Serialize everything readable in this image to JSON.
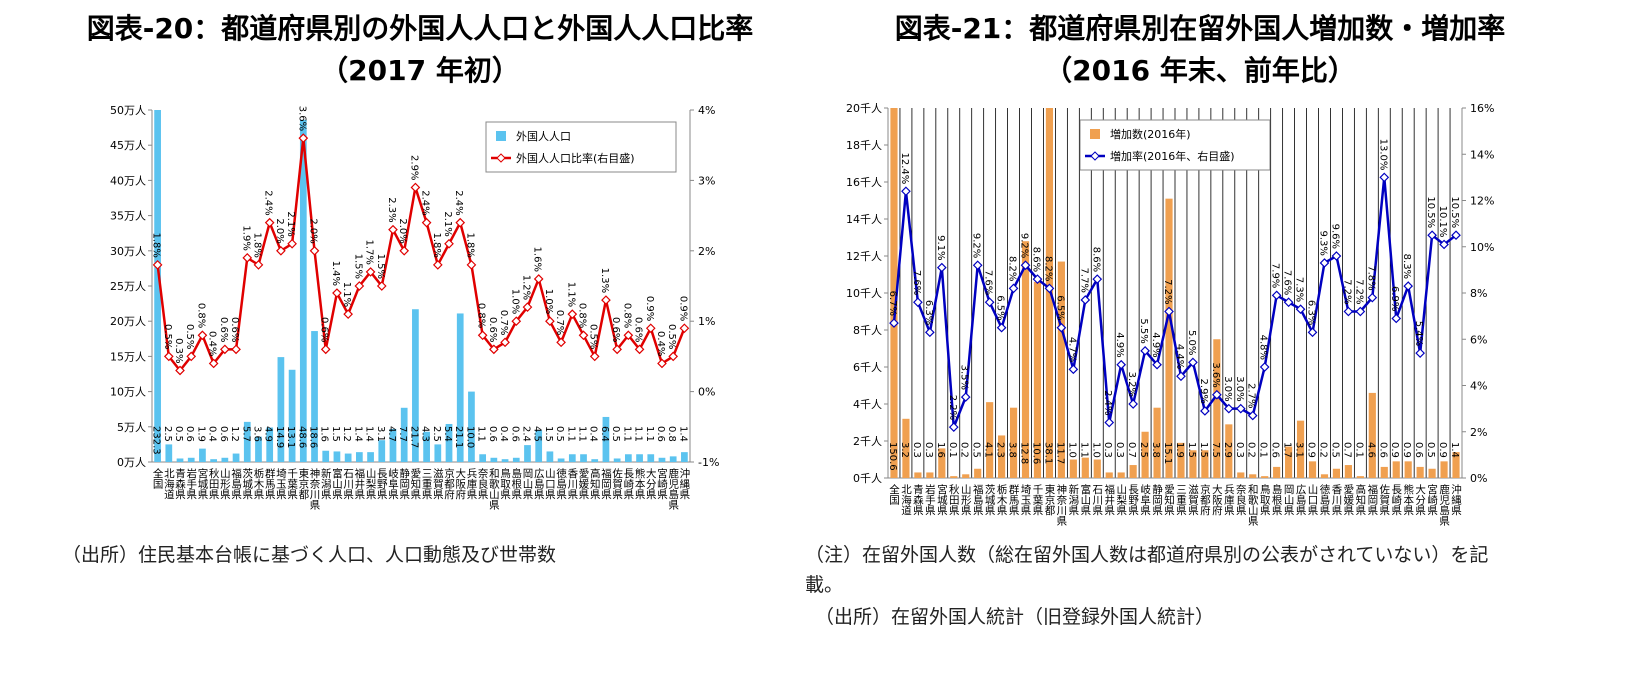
{
  "chart_data": [
    {
      "type": "combo",
      "title": "図表-20：都道府県別の外国人人口と外国人人口比率（2017 年初）",
      "notes": [
        "（出所）住民基本台帳に基づく人口、人口動態及び世帯数"
      ],
      "legend": "top-right",
      "categories": [
        "全国",
        "北海道",
        "青森県",
        "岩手県",
        "宮城県",
        "秋田県",
        "山形県",
        "福島県",
        "茨城県",
        "栃木県",
        "群馬県",
        "埼玉県",
        "千葉県",
        "東京都",
        "神奈川県",
        "新潟県",
        "富山県",
        "石川県",
        "福井県",
        "山梨県",
        "長野県",
        "岐阜県",
        "静岡県",
        "愛知県",
        "三重県",
        "滋賀県",
        "京都府",
        "大阪府",
        "兵庫県",
        "奈良県",
        "和歌山県",
        "鳥取県",
        "島根県",
        "岡山県",
        "広島県",
        "山口県",
        "徳島県",
        "香川県",
        "愛媛県",
        "高知県",
        "福岡県",
        "佐賀県",
        "長崎県",
        "熊本県",
        "大分県",
        "宮崎県",
        "鹿児島県",
        "沖縄県"
      ],
      "ylim": [
        0,
        50
      ],
      "yticks": [
        {
          "value": 0,
          "label": "0万人"
        },
        {
          "value": 5,
          "label": "5万人"
        },
        {
          "value": 10,
          "label": "10万人"
        },
        {
          "value": 15,
          "label": "15万人"
        },
        {
          "value": 20,
          "label": "20万人"
        },
        {
          "value": 25,
          "label": "25万人"
        },
        {
          "value": 30,
          "label": "30万人"
        },
        {
          "value": 35,
          "label": "35万人"
        },
        {
          "value": 40,
          "label": "40万人"
        },
        {
          "value": 45,
          "label": "45万人"
        },
        {
          "value": 50,
          "label": "50万人"
        }
      ],
      "y2lim": [
        -1,
        4
      ],
      "y2ticks": [
        {
          "value": -1,
          "label": "-1%"
        },
        {
          "value": 0,
          "label": "0%"
        },
        {
          "value": 1,
          "label": "1%"
        },
        {
          "value": 2,
          "label": "2%"
        },
        {
          "value": 3,
          "label": "3%"
        },
        {
          "value": 4,
          "label": "4%"
        }
      ],
      "series": [
        {
          "name": "外国人人口",
          "type": "bar",
          "color": "#5bc3ef",
          "values": [
            232.3,
            2.5,
            0.5,
            0.6,
            1.9,
            0.4,
            0.6,
            1.2,
            5.7,
            3.6,
            4.9,
            14.9,
            13.1,
            48.6,
            18.6,
            1.6,
            1.5,
            1.2,
            1.4,
            1.4,
            3.1,
            4.7,
            7.7,
            21.7,
            4.3,
            2.5,
            5.4,
            21.1,
            10.0,
            1.1,
            0.6,
            0.4,
            0.6,
            2.4,
            4.5,
            1.5,
            0.5,
            1.1,
            1.1,
            0.4,
            6.4,
            0.5,
            1.1,
            1.1,
            1.1,
            0.6,
            0.8,
            1.4
          ],
          "value_labels": [
            "232.3",
            "2.5",
            "0.5",
            "0.6",
            "1.9",
            "0.4",
            "0.6",
            "1.2",
            "5.7",
            "3.6",
            "4.9",
            "14.9",
            "13.1",
            "48.6",
            "18.6",
            "1.6",
            "1.5",
            "1.2",
            "1.4",
            "1.4",
            "3.1",
            "4.7",
            "7.7",
            "21.7",
            "4.3",
            "2.5",
            "5.4",
            "21.1",
            "10.0",
            "1.1",
            "0.6",
            "0.4",
            "0.6",
            "2.4",
            "4.5",
            "1.5",
            "0.5",
            "1.1",
            "1.1",
            "0.4",
            "6.4",
            "0.5",
            "1.1",
            "1.1",
            "1.1",
            "0.6",
            "0.8",
            "1.4"
          ]
        },
        {
          "name": "外国人人口比率(右目盛)",
          "type": "line",
          "axis": "y2",
          "color": "#e00000",
          "values": [
            1.8,
            0.5,
            0.3,
            0.5,
            0.8,
            0.4,
            0.6,
            0.6,
            1.9,
            1.8,
            2.4,
            2.0,
            2.1,
            3.6,
            2.0,
            0.6,
            1.4,
            1.1,
            1.5,
            1.7,
            1.5,
            2.3,
            2.0,
            2.9,
            2.4,
            1.8,
            2.1,
            2.4,
            1.8,
            0.8,
            0.6,
            0.7,
            1.0,
            1.2,
            1.6,
            1.0,
            0.7,
            1.1,
            0.8,
            0.5,
            1.3,
            0.6,
            0.8,
            0.6,
            0.9,
            0.4,
            0.5,
            0.9
          ],
          "value_labels": [
            "1.8%",
            "0.5%",
            "0.3%",
            "0.5%",
            "0.8%",
            "0.4%",
            "0.6%",
            "0.6%",
            "1.9%",
            "1.8%",
            "2.4%",
            "2.0%",
            "2.1%",
            "3.6%",
            "2.0%",
            "0.6%",
            "1.4%",
            "1.1%",
            "1.5%",
            "1.7%",
            "1.5%",
            "2.3%",
            "2.0%",
            "2.9%",
            "2.4%",
            "1.8%",
            "2.1%",
            "2.4%",
            "1.8%",
            "0.8%",
            "0.6%",
            "0.7%",
            "1.0%",
            "1.2%",
            "1.6%",
            "1.0%",
            "0.7%",
            "1.1%",
            "0.8%",
            "0.5%",
            "1.3%",
            "0.6%",
            "0.8%",
            "0.6%",
            "0.9%",
            "0.4%",
            "0.5%",
            "0.9%"
          ]
        }
      ]
    },
    {
      "type": "combo",
      "title": "図表-21：都道府県別在留外国人増加数・増加率（2016 年末、前年比）",
      "notes": [
        "（注）在留外国人数（総在留外国人数は都道府県別の公表がされていない）を記載。",
        "（出所）在留外国人統計（旧登録外国人統計）"
      ],
      "legend": "top-center",
      "categories": [
        "全国",
        "北海道",
        "青森県",
        "岩手県",
        "宮城県",
        "秋田県",
        "山形県",
        "福島県",
        "茨城県",
        "栃木県",
        "群馬県",
        "埼玉県",
        "千葉県",
        "東京都",
        "神奈川県",
        "新潟県",
        "富山県",
        "石川県",
        "福井県",
        "山梨県",
        "長野県",
        "岐阜県",
        "静岡県",
        "愛知県",
        "三重県",
        "滋賀県",
        "京都府",
        "大阪府",
        "兵庫県",
        "奈良県",
        "和歌山県",
        "鳥取県",
        "島根県",
        "岡山県",
        "広島県",
        "山口県",
        "徳島県",
        "香川県",
        "愛媛県",
        "高知県",
        "福岡県",
        "佐賀県",
        "長崎県",
        "熊本県",
        "大分県",
        "宮崎県",
        "鹿児島県",
        "沖縄県"
      ],
      "ylim": [
        0,
        20
      ],
      "yticks": [
        {
          "value": 0,
          "label": "0千人"
        },
        {
          "value": 2,
          "label": "2千人"
        },
        {
          "value": 4,
          "label": "4千人"
        },
        {
          "value": 6,
          "label": "6千人"
        },
        {
          "value": 8,
          "label": "8千人"
        },
        {
          "value": 10,
          "label": "10千人"
        },
        {
          "value": 12,
          "label": "12千人"
        },
        {
          "value": 14,
          "label": "14千人"
        },
        {
          "value": 16,
          "label": "16千人"
        },
        {
          "value": 18,
          "label": "18千人"
        },
        {
          "value": 20,
          "label": "20千人"
        }
      ],
      "y2lim": [
        0,
        16
      ],
      "y2ticks": [
        {
          "value": 0,
          "label": "0%"
        },
        {
          "value": 2,
          "label": "2%"
        },
        {
          "value": 4,
          "label": "4%"
        },
        {
          "value": 6,
          "label": "6%"
        },
        {
          "value": 8,
          "label": "8%"
        },
        {
          "value": 10,
          "label": "10%"
        },
        {
          "value": 12,
          "label": "12%"
        },
        {
          "value": 14,
          "label": "14%"
        },
        {
          "value": 16,
          "label": "16%"
        }
      ],
      "series": [
        {
          "name": "増加数(2016年)",
          "type": "bar",
          "color": "#f0a050",
          "values": [
            150.6,
            3.2,
            0.3,
            0.3,
            1.6,
            0.1,
            0.2,
            0.5,
            4.1,
            2.3,
            3.8,
            12.8,
            10.6,
            38.1,
            11.7,
            1.0,
            1.1,
            1.0,
            0.3,
            0.3,
            0.7,
            2.5,
            3.8,
            15.1,
            1.9,
            1.5,
            1.5,
            7.5,
            2.9,
            0.3,
            0.2,
            0.1,
            0.6,
            1.7,
            3.1,
            0.9,
            0.2,
            0.5,
            0.7,
            0.1,
            4.6,
            0.6,
            0.9,
            0.9,
            0.6,
            0.5,
            0.9,
            1.4
          ],
          "value_labels": [
            "150.6",
            "3.2",
            "0.3",
            "0.3",
            "1.6",
            "0.1",
            "0.2",
            "0.5",
            "4.1",
            "2.3",
            "3.8",
            "12.8",
            "10.6",
            "38.1",
            "11.7",
            "1.0",
            "1.1",
            "1.0",
            "0.3",
            "0.3",
            "0.7",
            "2.5",
            "3.8",
            "15.1",
            "1.9",
            "1.5",
            "1.5",
            "7.5",
            "2.9",
            "0.3",
            "0.2",
            "0.1",
            "0.6",
            "1.7",
            "3.1",
            "0.9",
            "0.2",
            "0.5",
            "0.7",
            "0.1",
            "4.6",
            "0.6",
            "0.9",
            "0.9",
            "0.6",
            "0.5",
            "0.9",
            "1.4"
          ]
        },
        {
          "name": "増加率(2016年、右目盛)",
          "type": "line",
          "axis": "y2",
          "color": "#0000c0",
          "values": [
            6.7,
            12.4,
            7.6,
            6.3,
            9.1,
            2.2,
            3.5,
            9.2,
            7.6,
            6.5,
            8.2,
            9.2,
            8.6,
            8.2,
            6.5,
            4.7,
            7.7,
            8.6,
            2.4,
            4.9,
            3.2,
            5.5,
            4.9,
            7.2,
            4.4,
            5.0,
            2.9,
            3.6,
            3.0,
            3.0,
            2.7,
            4.8,
            7.9,
            7.6,
            7.3,
            6.3,
            9.3,
            9.6,
            7.2,
            7.2,
            7.8,
            13.0,
            6.9,
            8.3,
            5.4,
            10.5,
            10.1,
            10.5
          ],
          "value_labels": [
            "6.7%",
            "12.4%",
            "7.6%",
            "6.3%",
            "9.1%",
            "2.2%",
            "3.5%",
            "9.2%",
            "7.6%",
            "6.5%",
            "8.2%",
            "9.2%",
            "8.6%",
            "8.2%",
            "6.5%",
            "4.7%",
            "7.7%",
            "8.6%",
            "2.4%",
            "4.9%",
            "3.2%",
            "5.5%",
            "4.9%",
            "7.2%",
            "4.4%",
            "5.0%",
            "2.9%",
            "3.6%",
            "3.0%",
            "3.0%",
            "2.7%",
            "4.8%",
            "7.9%",
            "7.6%",
            "7.3%",
            "6.3%",
            "9.3%",
            "9.6%",
            "7.2%",
            "7.2%",
            "7.8%",
            "13.0%",
            "6.9%",
            "8.3%",
            "5.4%",
            "10.5%",
            "10.1%",
            "10.5%"
          ]
        }
      ]
    }
  ]
}
